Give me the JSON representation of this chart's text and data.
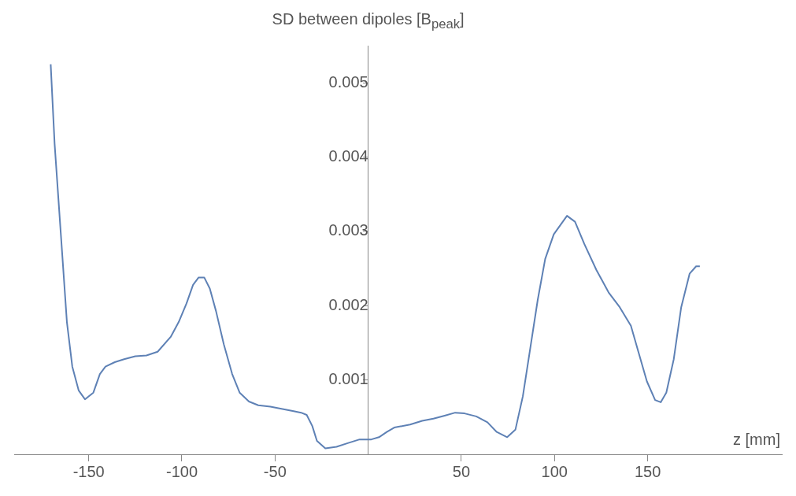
{
  "chart_data": {
    "type": "line",
    "ylabel": "SD between dipoles [B$_{peak}$]",
    "xlabel": "z [mm]",
    "xlim": [
      -190,
      222
    ],
    "ylim": [
      0,
      0.0055
    ],
    "xticks": [
      -150,
      -100,
      -50,
      50,
      100,
      150
    ],
    "yticks": [
      0.001,
      0.002,
      0.003,
      0.004,
      0.005
    ],
    "grid": false,
    "legend": false,
    "marker": "none",
    "line_style": "solid",
    "series": [
      {
        "color": "#5e81b5",
        "x": [
          -170.4,
          -168.3,
          -165,
          -161.7,
          -158.8,
          -155.4,
          -152,
          -147.5,
          -144,
          -141,
          -136,
          -131,
          -125,
          -119,
          -113,
          -106,
          -101.7,
          -97.5,
          -94,
          -91,
          -88,
          -85,
          -81.7,
          -77.5,
          -73,
          -69,
          -64,
          -59,
          -52.5,
          -46,
          -40,
          -36,
          -33,
          -30,
          -27.5,
          -23,
          -17,
          -11,
          -4.6,
          1.7,
          5.8,
          10,
          14,
          22.5,
          29,
          35,
          41,
          46.7,
          51.7,
          58,
          64,
          69,
          74.6,
          79,
          83,
          87,
          91,
          95,
          99.6,
          106.7,
          111,
          116,
          122.5,
          129,
          135,
          141,
          145,
          149.6,
          154,
          157,
          160,
          164,
          168,
          172.5,
          176,
          178
        ],
        "values": [
          0.00525,
          0.00418,
          0.00298,
          0.00178,
          0.00118,
          0.00086,
          0.00074,
          0.00083,
          0.00108,
          0.00118,
          0.00124,
          0.00128,
          0.00132,
          0.00133,
          0.00138,
          0.00158,
          0.00178,
          0.00203,
          0.00228,
          0.00238,
          0.00238,
          0.00223,
          0.00193,
          0.00148,
          0.00108,
          0.00083,
          0.00071,
          0.00066,
          0.00064,
          0.00061,
          0.00058,
          0.00056,
          0.00053,
          0.00038,
          0.00018,
          8e-05,
          0.0001,
          0.00015,
          0.0002,
          0.0002,
          0.00023,
          0.0003,
          0.00036,
          0.0004,
          0.00045,
          0.00048,
          0.00052,
          0.00056,
          0.00055,
          0.00051,
          0.00043,
          0.0003,
          0.00023,
          0.00033,
          0.00078,
          0.00143,
          0.00208,
          0.00263,
          0.00296,
          0.00321,
          0.00313,
          0.00283,
          0.00248,
          0.00218,
          0.00198,
          0.00173,
          0.00138,
          0.00098,
          0.00073,
          0.0007,
          0.00083,
          0.00128,
          0.00198,
          0.00243,
          0.00253,
          0.00253
        ]
      }
    ]
  }
}
